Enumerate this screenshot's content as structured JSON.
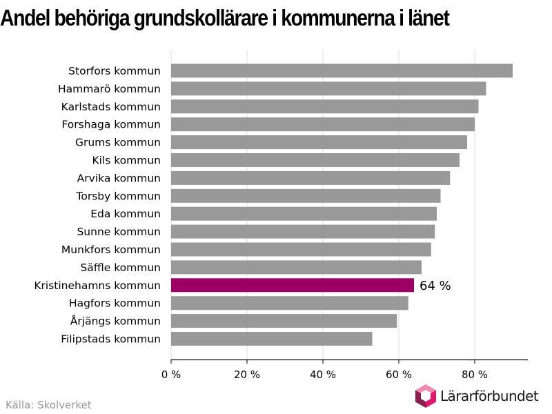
{
  "title": "Andel behöriga grundskollärare i kommunerna i länet",
  "source": "Källa: Skolverket",
  "logo_text": "Lärarförbundet",
  "logo_icon": "lararforbundet-logo-icon",
  "colors": {
    "bar": "#999999",
    "highlight": "#9b0062",
    "grid": "#dddddd",
    "axis": "#000000",
    "logo_pink": "#e0186c",
    "logo_purple": "#8a1f4f",
    "logo_light": "#f08bb0"
  },
  "chart_data": {
    "type": "bar",
    "orientation": "horizontal",
    "xlim": [
      0,
      94
    ],
    "x_ticks": [
      0,
      20,
      40,
      60,
      80
    ],
    "x_tick_labels": [
      "0 %",
      "20 %",
      "40 %",
      "60 %",
      "80 %"
    ],
    "grid": true,
    "categories": [
      "Storfors kommun",
      "Hammarö kommun",
      "Karlstads kommun",
      "Forshaga kommun",
      "Grums kommun",
      "Kils kommun",
      "Arvika kommun",
      "Torsby kommun",
      "Eda kommun",
      "Sunne kommun",
      "Munkfors kommun",
      "Säffle kommun",
      "Kristinehamns kommun",
      "Hagfors kommun",
      "Årjängs kommun",
      "Filipstads kommun"
    ],
    "values": [
      90,
      83,
      81,
      80,
      78,
      76,
      73.5,
      71,
      70,
      69.5,
      68.5,
      66,
      64,
      62.5,
      59.5,
      53
    ],
    "highlight_index": 12,
    "annotation": "64 %"
  }
}
